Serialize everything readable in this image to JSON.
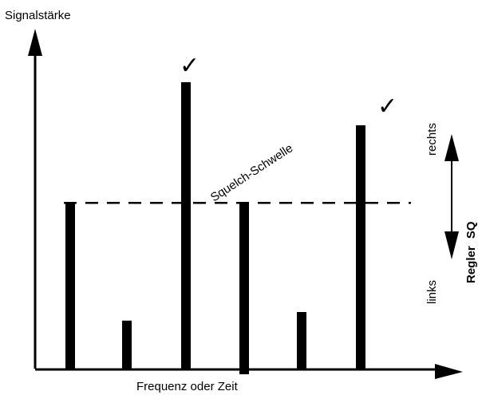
{
  "y_axis_label": "Signalstärke",
  "x_axis_label": "Frequenz oder Zeit",
  "threshold_label": "Squelch-Schwelle",
  "control_label_prefix": "Regler",
  "control_label_name": "SQ",
  "direction_up_label": "rechts",
  "direction_down_label": "links",
  "check_mark": "✓",
  "threshold_level": 0.58,
  "bars": [
    {
      "level": 0.58,
      "above_threshold": false
    },
    {
      "level": 0.17,
      "above_threshold": false
    },
    {
      "level": 1.0,
      "above_threshold": true
    },
    {
      "level": 0.58,
      "above_threshold": false
    },
    {
      "level": 0.2,
      "above_threshold": false
    },
    {
      "level": 0.85,
      "above_threshold": true
    }
  ]
}
